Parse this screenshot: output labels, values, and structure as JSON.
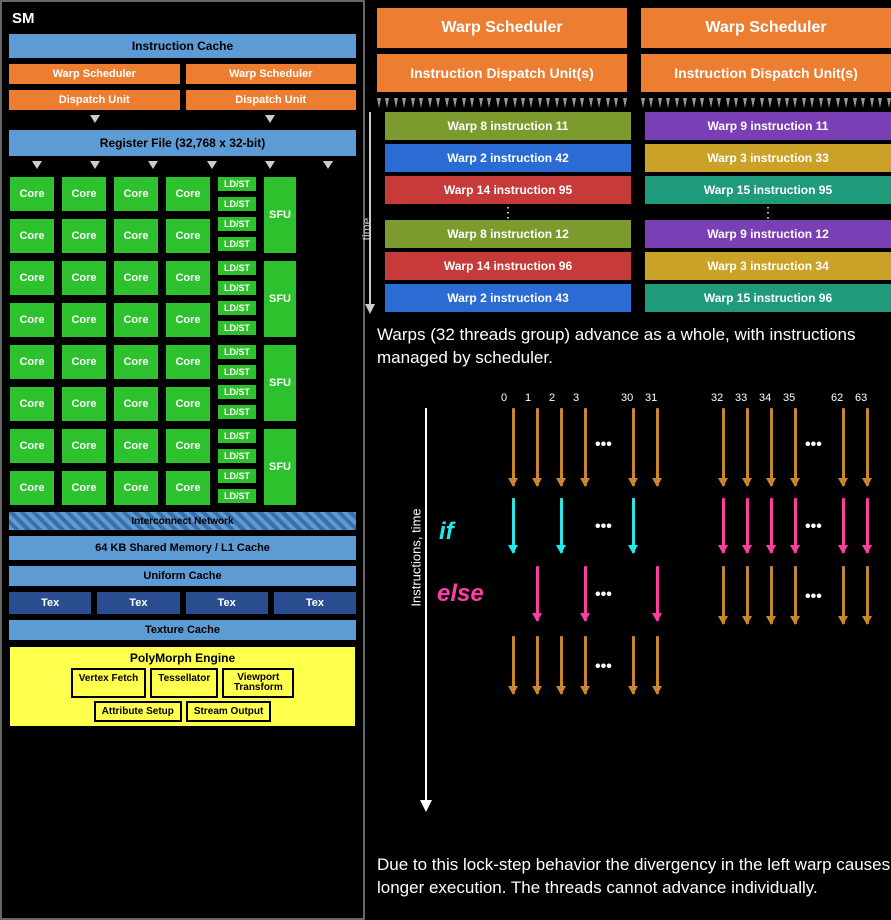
{
  "sm": {
    "label": "SM",
    "icache": "Instruction Cache",
    "warp_sched": "Warp Scheduler",
    "dispatch": "Dispatch Unit",
    "regfile": "Register File (32,768 x 32-bit)",
    "core": "Core",
    "ldst": "LD/ST",
    "sfu": "SFU",
    "interconnect": "Interconnect Network",
    "shared_mem": "64 KB Shared Memory / L1 Cache",
    "uniform": "Uniform Cache",
    "tex": "Tex",
    "texcache": "Texture Cache",
    "polymorph": {
      "title": "PolyMorph Engine",
      "items": [
        "Vertex Fetch",
        "Tessellator",
        "Viewport Transform",
        "Attribute Setup",
        "Stream Output"
      ]
    },
    "colors": {
      "blue": "#5d9bd5",
      "darkblue": "#2a4d8f",
      "orange": "#ed7d31",
      "green": "#2ec12e",
      "yellow": "#ffff4d"
    },
    "core_rows": 8,
    "core_cols": 4,
    "ldst_per_pair": 4,
    "sfu_per_grid": 4
  },
  "sched": {
    "warp_scheduler": "Warp Scheduler",
    "dispatch": "Instruction Dispatch Unit(s)",
    "time": "time",
    "left": [
      {
        "label": "Warp 8 instruction 11",
        "color": "#7c9a2e"
      },
      {
        "label": "Warp 2 instruction 42",
        "color": "#2a6bd4"
      },
      {
        "label": "Warp 14 instruction 95",
        "color": "#c73a3a"
      },
      {
        "label": "Warp 8 instruction 12",
        "color": "#7c9a2e"
      },
      {
        "label": "Warp 14 instruction 96",
        "color": "#c73a3a"
      },
      {
        "label": "Warp 2 instruction 43",
        "color": "#2a6bd4"
      }
    ],
    "right": [
      {
        "label": "Warp 9 instruction 11",
        "color": "#7b3fb5"
      },
      {
        "label": "Warp 3 instruction 33",
        "color": "#c9a227"
      },
      {
        "label": "Warp 15 instruction 95",
        "color": "#1f9a7a"
      },
      {
        "label": "Warp 9 instruction 12",
        "color": "#7b3fb5"
      },
      {
        "label": "Warp 3 instruction 34",
        "color": "#c9a227"
      },
      {
        "label": "Warp 15 instruction 96",
        "color": "#1f9a7a"
      }
    ]
  },
  "text1": "Warps (32 threads group) advance as a whole, with instructions managed by scheduler.",
  "text2": "Due to this lock-step behavior the divergency in the left warp causes longer execution. The threads cannot advance individually.",
  "divergence": {
    "thread_ids": [
      "0",
      "1",
      "2",
      "3",
      "30",
      "31",
      "32",
      "33",
      "34",
      "35",
      "62",
      "63"
    ],
    "if": "if",
    "else": "else",
    "axis": "Instructions, time",
    "colors": {
      "brown": "#c8872e",
      "cyan": "#26e8e8",
      "pink": "#ff3ea5"
    }
  }
}
